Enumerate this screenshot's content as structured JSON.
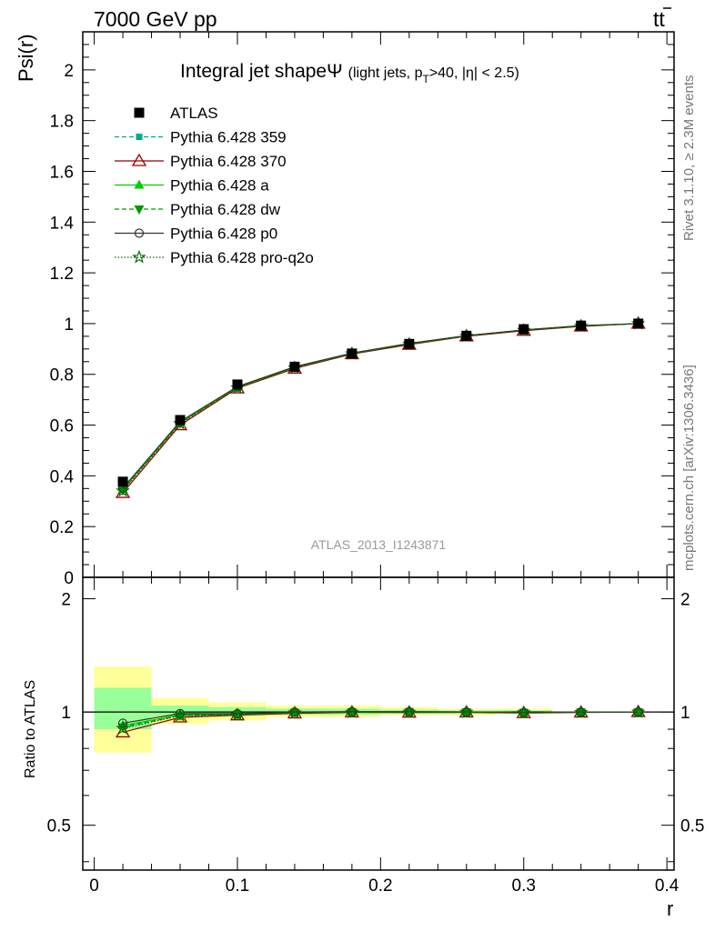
{
  "header": {
    "left": "7000 GeV pp",
    "right": "t",
    "right_bar": "t"
  },
  "side": {
    "rivet": "Rivet 3.1.10, ≥ 2.3M events",
    "mcplots": "mcplots.cern.ch [arXiv:1306.3436]"
  },
  "watermark": "ATLAS_2013_I1243871",
  "title": {
    "main": "Integral jet shape",
    "psi": "Ψ",
    "sub1": "(light jets, p",
    "sub_T": "T",
    "sub2": ">40, |η| < 2.5)"
  },
  "legend": {
    "entries": [
      {
        "label": "ATLAS"
      },
      {
        "label": "Pythia 6.428 359"
      },
      {
        "label": "Pythia 6.428 370"
      },
      {
        "label": "Pythia 6.428 a"
      },
      {
        "label": "Pythia 6.428 dw"
      },
      {
        "label": "Pythia 6.428 p0"
      },
      {
        "label": "Pythia 6.428 pro-q2o"
      }
    ]
  },
  "chart_data": {
    "type": "line",
    "x": [
      0.02,
      0.06,
      0.1,
      0.14,
      0.18,
      0.22,
      0.26,
      0.3,
      0.34,
      0.38
    ],
    "x_edges": [
      0,
      0.04,
      0.08,
      0.12,
      0.16,
      0.2,
      0.24,
      0.28,
      0.32,
      0.36,
      0.4
    ],
    "xlabel": "r",
    "ylabel": "Psi(r)",
    "ratio_ylabel": "Ratio to ATLAS",
    "xlim": [
      -0.008,
      0.405
    ],
    "ylim": [
      0,
      2.15
    ],
    "ratio_ylim": [
      0.38,
      2.28
    ],
    "x_ticks": [
      0,
      0.1,
      0.2,
      0.3,
      0.4
    ],
    "x_tick_labels": [
      "0",
      "0.1",
      "0.2",
      "0.3",
      "0.4"
    ],
    "y_ticks": [
      0,
      0.2,
      0.4,
      0.6,
      0.8,
      1.0,
      1.2,
      1.4,
      1.6,
      1.8,
      2.0
    ],
    "y_tick_labels": [
      "0",
      "0.2",
      "0.4",
      "0.6",
      "0.8",
      "1",
      "1.2",
      "1.4",
      "1.6",
      "1.8",
      "2"
    ],
    "ratio_y_ticks": [
      0.5,
      1,
      2
    ],
    "ratio_y_tick_labels": [
      "0.5",
      "1",
      "2"
    ],
    "data": {
      "name": "ATLAS",
      "values": [
        0.377,
        0.62,
        0.76,
        0.83,
        0.882,
        0.92,
        0.952,
        0.978,
        0.992,
        1.0
      ],
      "band_inner": [
        [
          0.9,
          1.16
        ],
        [
          0.97,
          1.04
        ],
        [
          0.98,
          1.03
        ],
        [
          0.985,
          1.02
        ],
        [
          0.985,
          1.02
        ],
        [
          0.99,
          1.015
        ],
        [
          0.99,
          1.01
        ],
        [
          0.995,
          1.01
        ]
      ],
      "band_outer": [
        [
          0.78,
          1.32
        ],
        [
          0.93,
          1.09
        ],
        [
          0.95,
          1.06
        ],
        [
          0.97,
          1.04
        ],
        [
          0.97,
          1.04
        ],
        [
          0.98,
          1.03
        ],
        [
          0.98,
          1.02
        ],
        [
          0.99,
          1.02
        ]
      ],
      "color": "#000000"
    },
    "series": [
      {
        "name": "Pythia 6.428 359",
        "values": [
          0.345,
          0.608,
          0.748,
          0.827,
          0.882,
          0.92,
          0.952,
          0.975,
          0.991,
          1.0
        ],
        "color": "#00aa88"
      },
      {
        "name": "Pythia 6.428 370",
        "values": [
          0.333,
          0.6,
          0.745,
          0.823,
          0.88,
          0.917,
          0.95,
          0.972,
          0.989,
          1.0
        ],
        "color": "#990000"
      },
      {
        "name": "Pythia 6.428 a",
        "values": [
          0.347,
          0.609,
          0.749,
          0.828,
          0.883,
          0.921,
          0.952,
          0.975,
          0.991,
          1.0
        ],
        "color": "#00cc00"
      },
      {
        "name": "Pythia 6.428 dw",
        "values": [
          0.343,
          0.607,
          0.748,
          0.827,
          0.882,
          0.92,
          0.952,
          0.975,
          0.991,
          1.0
        ],
        "color": "#009900"
      },
      {
        "name": "Pythia 6.428 p0",
        "values": [
          0.352,
          0.614,
          0.752,
          0.83,
          0.884,
          0.922,
          0.953,
          0.975,
          0.992,
          1.0
        ],
        "color": "#333333"
      },
      {
        "name": "Pythia 6.428 pro-q2o",
        "values": [
          0.341,
          0.606,
          0.747,
          0.826,
          0.881,
          0.919,
          0.951,
          0.974,
          0.99,
          1.0
        ],
        "color": "#006600"
      }
    ]
  }
}
